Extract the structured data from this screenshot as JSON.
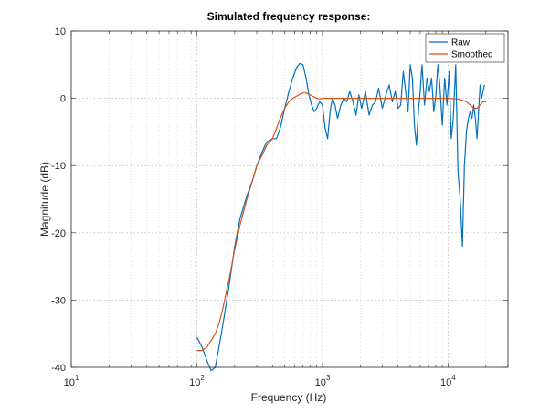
{
  "chart_data": {
    "type": "line",
    "title": "Simulated frequency response:",
    "xlabel": "Frequency (Hz)",
    "ylabel": "Magnitude (dB)",
    "xscale": "log",
    "xlim": [
      10,
      30000
    ],
    "ylim": [
      -40,
      10
    ],
    "grid": true,
    "legend_position": "top-right",
    "x_ticks": [
      {
        "value": 10,
        "base": "10",
        "exp": "1"
      },
      {
        "value": 100,
        "base": "10",
        "exp": "2"
      },
      {
        "value": 1000,
        "base": "10",
        "exp": "3"
      },
      {
        "value": 10000,
        "base": "10",
        "exp": "4"
      }
    ],
    "y_ticks": [
      {
        "value": 10,
        "label": "10"
      },
      {
        "value": 0,
        "label": "0"
      },
      {
        "value": -10,
        "label": "-10"
      },
      {
        "value": -20,
        "label": "-20"
      },
      {
        "value": -30,
        "label": "-30"
      },
      {
        "value": -40,
        "label": "-40"
      }
    ],
    "series": [
      {
        "name": "Raw",
        "color": "#0072BD",
        "x": [
          100,
          110,
          120,
          130,
          140,
          150,
          160,
          180,
          200,
          220,
          250,
          280,
          300,
          330,
          360,
          400,
          430,
          460,
          500,
          540,
          580,
          620,
          660,
          700,
          740,
          780,
          820,
          860,
          900,
          950,
          1000,
          1050,
          1100,
          1150,
          1200,
          1260,
          1320,
          1400,
          1480,
          1560,
          1650,
          1750,
          1850,
          1950,
          2050,
          2200,
          2350,
          2500,
          2650,
          2800,
          3000,
          3200,
          3400,
          3600,
          3800,
          4000,
          4200,
          4400,
          4600,
          4800,
          5000,
          5200,
          5400,
          5600,
          5800,
          6000,
          6200,
          6500,
          6800,
          7100,
          7400,
          7700,
          8000,
          8300,
          8600,
          9000,
          9400,
          9800,
          10200,
          10600,
          11000,
          11500,
          12000,
          12500,
          13000,
          13500,
          14000,
          14500,
          15000,
          15500,
          16000,
          16500,
          17000,
          17500,
          18000,
          18500,
          19000,
          19500
        ],
        "values": [
          -35.5,
          -37,
          -39,
          -40.5,
          -40,
          -37,
          -34,
          -28,
          -22,
          -18,
          -14.5,
          -12,
          -10,
          -8,
          -6.5,
          -6,
          -6,
          -4.5,
          -1.5,
          1,
          3,
          4.5,
          5.2,
          5,
          3,
          0.5,
          -1,
          -2,
          -1.5,
          -0.5,
          -1,
          -4.5,
          -6,
          -2,
          0,
          -1,
          -3,
          -1,
          0,
          -0.5,
          1,
          -0.5,
          -2.5,
          0.5,
          -1.5,
          1,
          -2.5,
          -1,
          -0.5,
          1.5,
          -1.5,
          0.5,
          2,
          -0.5,
          1,
          -1.5,
          -1,
          4,
          1,
          -2,
          5,
          3,
          -4,
          -7,
          -2,
          1,
          5,
          -1,
          3,
          1,
          3,
          -2,
          0.5,
          5,
          2,
          -4,
          3,
          -1,
          4,
          -6,
          -3,
          5,
          -11,
          -15,
          -22,
          -10,
          -5,
          -3,
          -2,
          -3,
          -1,
          -3,
          -6,
          -2,
          2,
          0,
          1,
          2
        ]
      },
      {
        "name": "Smoothed",
        "color": "#D95319",
        "x": [
          100,
          110,
          120,
          130,
          140,
          150,
          160,
          180,
          200,
          220,
          250,
          280,
          300,
          330,
          360,
          400,
          430,
          460,
          500,
          540,
          580,
          620,
          660,
          700,
          740,
          780,
          820,
          860,
          900,
          950,
          1000,
          1200,
          1500,
          2000,
          2500,
          3000,
          4000,
          5000,
          6000,
          8000,
          10000,
          12000,
          14000,
          15000,
          16000,
          17000,
          18000,
          19000,
          20000
        ],
        "values": [
          -37.5,
          -37.5,
          -37,
          -36,
          -35,
          -33.5,
          -31.5,
          -27,
          -22.5,
          -19,
          -15,
          -12,
          -10,
          -8.5,
          -7,
          -6,
          -4.5,
          -3,
          -1.5,
          -0.5,
          0,
          0.3,
          0.6,
          0.8,
          0.8,
          0.6,
          0.4,
          0.2,
          0,
          -0.1,
          0,
          0,
          0,
          0,
          0,
          0,
          0,
          0,
          0,
          0,
          0,
          -0.1,
          -0.5,
          -1,
          -1.5,
          -1.5,
          -1,
          -0.5,
          -0.5
        ]
      }
    ]
  }
}
